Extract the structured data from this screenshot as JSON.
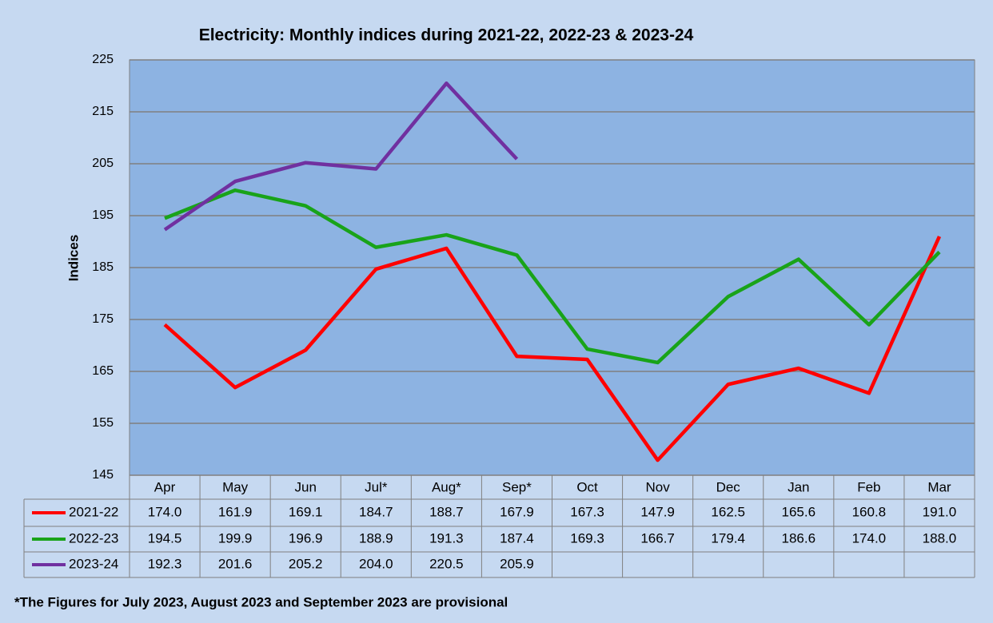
{
  "chart_data": {
    "type": "line",
    "title": "Electricity: Monthly indices during 2021-22, 2022-23 & 2023-24",
    "y_label": "Indices",
    "footnote": "*The Figures for July 2023, August 2023 and September 2023 are provisional",
    "categories": [
      "Apr",
      "May",
      "Jun",
      "Jul*",
      "Aug*",
      "Sep*",
      "Oct",
      "Nov",
      "Dec",
      "Jan",
      "Feb",
      "Mar"
    ],
    "series": [
      {
        "name": "2021-22",
        "color": "#ff0000",
        "values": [
          174.0,
          161.9,
          169.1,
          184.7,
          188.7,
          167.9,
          167.3,
          147.9,
          162.5,
          165.6,
          160.8,
          191.0
        ],
        "value_labels": [
          "174.0",
          "161.9",
          "169.1",
          "184.7",
          "188.7",
          "167.9",
          "167.3",
          "147.9",
          "162.5",
          "165.6",
          "160.8",
          "191.0"
        ]
      },
      {
        "name": "2022-23",
        "color": "#19a319",
        "values": [
          194.5,
          199.9,
          196.9,
          188.9,
          191.3,
          187.4,
          169.3,
          166.7,
          179.4,
          186.6,
          174.0,
          188.0
        ],
        "value_labels": [
          "194.5",
          "199.9",
          "196.9",
          "188.9",
          "191.3",
          "187.4",
          "169.3",
          "166.7",
          "179.4",
          "186.6",
          "174.0",
          "188.0"
        ]
      },
      {
        "name": "2023-24",
        "color": "#7030a0",
        "values": [
          192.3,
          201.6,
          205.2,
          204.0,
          220.5,
          205.9,
          null,
          null,
          null,
          null,
          null,
          null
        ],
        "value_labels": [
          "192.3",
          "201.6",
          "205.2",
          "204.0",
          "220.5",
          "205.9",
          null,
          null,
          null,
          null,
          null,
          null
        ]
      }
    ],
    "ylim": [
      145,
      225
    ],
    "yticks": [
      145,
      155,
      165,
      175,
      185,
      195,
      205,
      215,
      225
    ],
    "grid": true
  }
}
